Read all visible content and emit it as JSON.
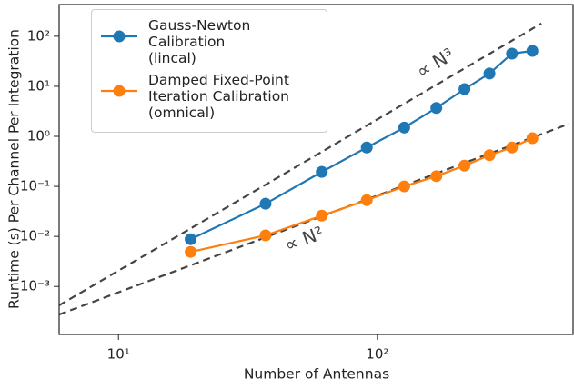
{
  "chart_data": {
    "type": "line",
    "x_label": "Number of Antennas",
    "y_label": "Runtime (s) Per Channel Per Integration",
    "x_log": true,
    "y_log": true,
    "xlim": [
      5.9,
      570
    ],
    "ylim": [
      0.00011,
      430
    ],
    "xticks": [
      {
        "value": 10,
        "label": "10¹"
      },
      {
        "value": 100,
        "label": "10²"
      }
    ],
    "yticks": [
      {
        "value": 0.001,
        "label": "10⁻³"
      },
      {
        "value": 0.01,
        "label": "10⁻²"
      },
      {
        "value": 0.1,
        "label": "10⁻¹"
      },
      {
        "value": 1,
        "label": "10⁰"
      },
      {
        "value": 10,
        "label": "10¹"
      },
      {
        "value": 100,
        "label": "10²"
      }
    ],
    "legend": "upper left",
    "x": [
      19,
      37,
      61,
      91,
      127,
      169,
      217,
      271,
      331,
      397
    ],
    "series": [
      {
        "name": "Gauss-Newton\nCalibration\n(lincal)",
        "color": "#1f77b4",
        "values": [
          0.0088,
          0.045,
          0.195,
          0.6,
          1.5,
          3.7,
          8.8,
          18,
          45,
          51
        ]
      },
      {
        "name": "Damped Fixed-Point\nIteration Calibration\n(omnical)",
        "color": "#ff7f0e",
        "values": [
          0.0049,
          0.0105,
          0.026,
          0.053,
          0.1,
          0.16,
          0.26,
          0.42,
          0.6,
          0.92
        ]
      }
    ],
    "reference_lines": [
      {
        "label": "∝ N³",
        "x": [
          5.9,
          430
        ],
        "y": [
          0.00042,
          180
        ],
        "color": "#444444"
      },
      {
        "label": "∝ N²",
        "x": [
          5.9,
          550
        ],
        "y": [
          0.000275,
          1.78
        ],
        "color": "#444444"
      }
    ]
  }
}
